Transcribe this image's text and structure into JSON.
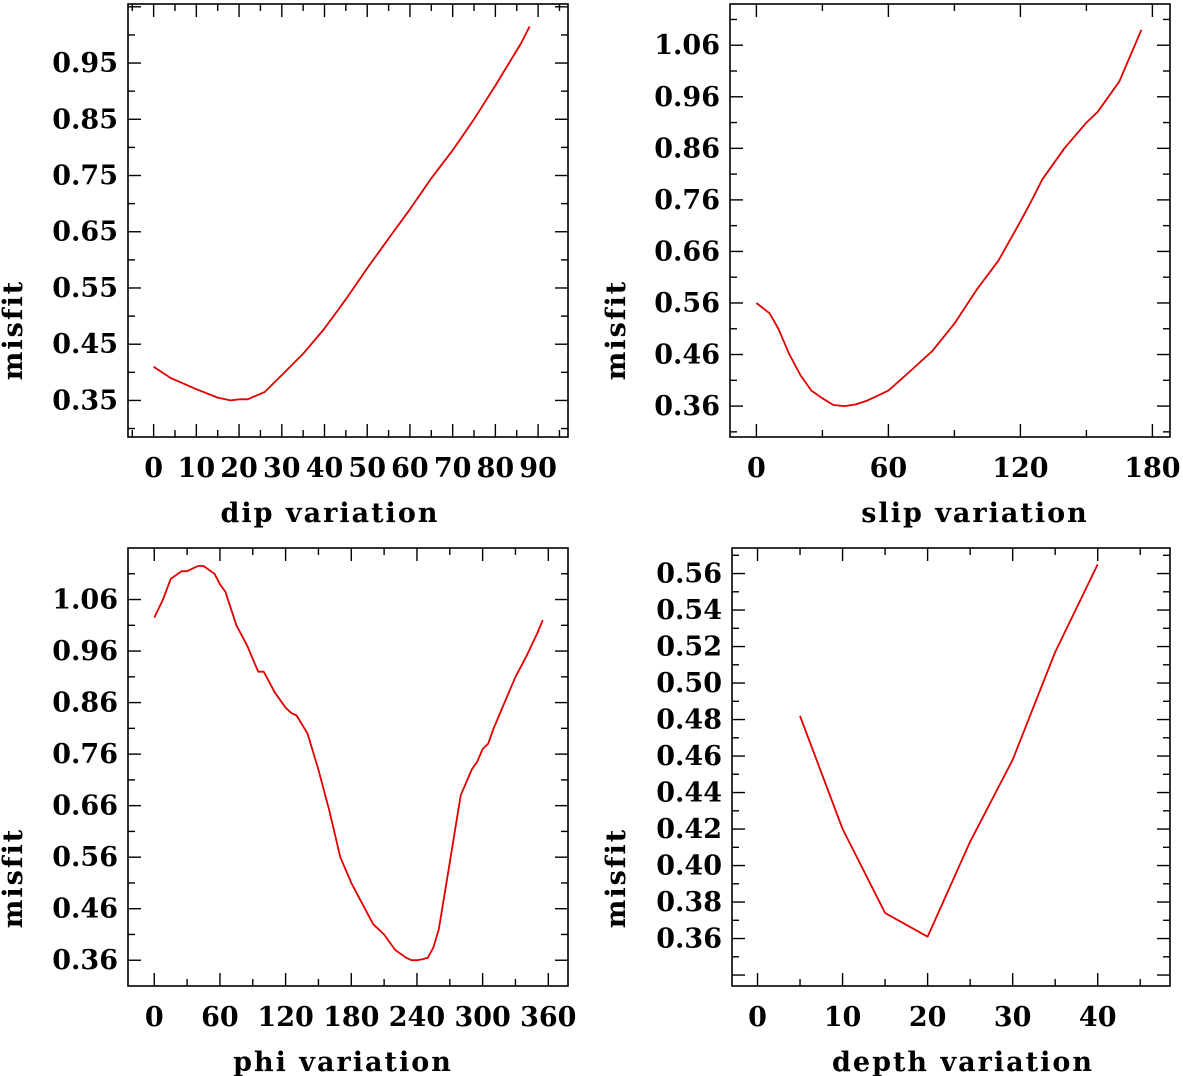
{
  "chart_data": [
    {
      "type": "line",
      "id": "dip",
      "xlabel": "dip     variation",
      "ylabel": "misfit",
      "xlim": [
        -6,
        97
      ],
      "ylim": [
        0.285,
        1.055
      ],
      "xticks": [
        0,
        10,
        20,
        30,
        40,
        50,
        60,
        70,
        80,
        90
      ],
      "xticklabels": [
        "0",
        "10",
        "20",
        "30",
        "40",
        "50",
        "60",
        "70",
        "80",
        "90"
      ],
      "yticks": [
        0.35,
        0.45,
        0.55,
        0.65,
        0.75,
        0.85,
        0.95
      ],
      "yticklabels": [
        "0.35",
        "0.45",
        "0.55",
        "0.65",
        "0.75",
        "0.85",
        "0.95"
      ],
      "x": [
        0,
        4,
        10,
        15,
        18,
        20,
        22,
        26,
        30,
        35,
        40,
        45,
        50,
        55,
        60,
        65,
        70,
        75,
        80,
        82,
        86,
        88
      ],
      "y": [
        0.41,
        0.39,
        0.37,
        0.355,
        0.35,
        0.352,
        0.352,
        0.365,
        0.395,
        0.433,
        0.478,
        0.53,
        0.585,
        0.638,
        0.69,
        0.745,
        0.795,
        0.85,
        0.91,
        0.935,
        0.985,
        1.015
      ]
    },
    {
      "type": "line",
      "id": "slip",
      "xlabel": "slip   variation",
      "ylabel": "misfit",
      "xlim": [
        -12,
        188
      ],
      "ylim": [
        0.3,
        1.14
      ],
      "xticks": [
        0,
        60,
        120,
        180
      ],
      "xticklabels": [
        "0",
        "60",
        "120",
        "180"
      ],
      "yticks": [
        0.36,
        0.46,
        0.56,
        0.66,
        0.76,
        0.86,
        0.96,
        1.06
      ],
      "yticklabels": [
        "0.36",
        "0.46",
        "0.56",
        "0.66",
        "0.76",
        "0.86",
        "0.96",
        "1.06"
      ],
      "x": [
        0,
        6,
        10,
        15,
        20,
        25,
        30,
        35,
        40,
        45,
        50,
        55,
        60,
        70,
        80,
        90,
        100,
        110,
        120,
        125,
        130,
        135,
        140,
        150,
        155,
        160,
        165,
        170,
        175
      ],
      "y": [
        0.56,
        0.54,
        0.51,
        0.46,
        0.42,
        0.39,
        0.375,
        0.362,
        0.36,
        0.363,
        0.37,
        0.38,
        0.39,
        0.428,
        0.467,
        0.52,
        0.585,
        0.642,
        0.718,
        0.758,
        0.8,
        0.83,
        0.86,
        0.91,
        0.93,
        0.96,
        0.99,
        1.04,
        1.09
      ]
    },
    {
      "type": "line",
      "id": "phi",
      "xlabel": "phi     variation",
      "ylabel": "misfit",
      "xlim": [
        -24,
        378
      ],
      "ylim": [
        0.31,
        1.16
      ],
      "xticks": [
        0,
        60,
        120,
        180,
        240,
        300,
        360
      ],
      "xticklabels": [
        "0",
        "60",
        "120",
        "180",
        "240",
        "300",
        "360"
      ],
      "yticks": [
        0.36,
        0.46,
        0.56,
        0.66,
        0.76,
        0.86,
        0.96,
        1.06
      ],
      "yticklabels": [
        "0.36",
        "0.46",
        "0.56",
        "0.66",
        "0.76",
        "0.86",
        "0.96",
        "1.06"
      ],
      "x": [
        0,
        8,
        15,
        25,
        30,
        35,
        40,
        45,
        55,
        60,
        65,
        75,
        85,
        95,
        100,
        110,
        120,
        125,
        130,
        140,
        150,
        160,
        170,
        180,
        190,
        200,
        210,
        220,
        230,
        235,
        240,
        245,
        250,
        255,
        260,
        270,
        280,
        290,
        295,
        300,
        305,
        310,
        320,
        330,
        340,
        350,
        355
      ],
      "y": [
        1.025,
        1.06,
        1.1,
        1.115,
        1.115,
        1.12,
        1.125,
        1.125,
        1.11,
        1.09,
        1.075,
        1.01,
        0.97,
        0.92,
        0.92,
        0.88,
        0.85,
        0.84,
        0.835,
        0.8,
        0.73,
        0.65,
        0.56,
        0.51,
        0.47,
        0.43,
        0.41,
        0.38,
        0.365,
        0.36,
        0.36,
        0.362,
        0.365,
        0.385,
        0.42,
        0.55,
        0.68,
        0.73,
        0.745,
        0.77,
        0.78,
        0.81,
        0.86,
        0.91,
        0.95,
        0.995,
        1.02
      ]
    },
    {
      "type": "line",
      "id": "depth",
      "xlabel": "depth   variation",
      "ylabel": "misfit",
      "xlim": [
        -3,
        48.5
      ],
      "ylim": [
        0.334,
        0.574
      ],
      "xticks": [
        0,
        10,
        20,
        30,
        40
      ],
      "xticklabels": [
        "0",
        "10",
        "20",
        "30",
        "40"
      ],
      "yticks": [
        0.36,
        0.38,
        0.4,
        0.42,
        0.44,
        0.46,
        0.48,
        0.5,
        0.52,
        0.54,
        0.56
      ],
      "yticklabels": [
        "0.36",
        "0.38",
        "0.40",
        "0.42",
        "0.44",
        "0.46",
        "0.48",
        "0.50",
        "0.52",
        "0.54",
        "0.56"
      ],
      "x": [
        5,
        10,
        15,
        20,
        25,
        30,
        35,
        40
      ],
      "y": [
        0.482,
        0.42,
        0.374,
        0.361,
        0.413,
        0.458,
        0.517,
        0.565
      ]
    }
  ]
}
